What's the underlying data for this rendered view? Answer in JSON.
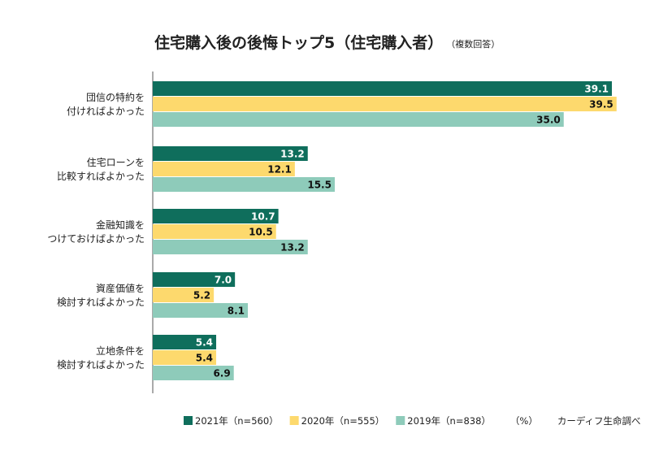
{
  "chart_data": {
    "type": "bar",
    "orientation": "horizontal",
    "title": "住宅購入後の後悔トップ5（住宅購入者）",
    "subtitle": "（複数回答）",
    "categories": [
      [
        "団信の特約を",
        "付ければよかった"
      ],
      [
        "住宅ローンを",
        "比較すればよかった"
      ],
      [
        "金融知識を",
        "つけておけばよかった"
      ],
      [
        "資産価値を",
        "検討すればよかった"
      ],
      [
        "立地条件を",
        "検討すればよかった"
      ]
    ],
    "series": [
      {
        "name": "2021年（n=560）",
        "color": "#0f6e5c",
        "label_color": "#ffffff",
        "values": [
          39.1,
          13.2,
          10.7,
          7.0,
          5.4
        ]
      },
      {
        "name": "2020年（n=555）",
        "color": "#fdd96d",
        "label_color": "#111111",
        "values": [
          39.5,
          12.1,
          10.5,
          5.2,
          5.4
        ]
      },
      {
        "name": "2019年（n=838）",
        "color": "#8ecbba",
        "label_color": "#111111",
        "values": [
          35.0,
          15.5,
          13.2,
          8.1,
          6.9
        ]
      }
    ],
    "unit": "（%）",
    "source": "カーディフ生命調べ",
    "xlim": [
      0,
      40
    ],
    "grid": false,
    "legend": "bottom"
  }
}
